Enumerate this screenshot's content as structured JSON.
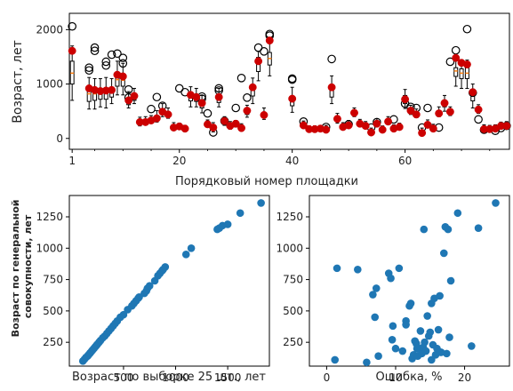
{
  "colors": {
    "box": "#000000",
    "median": "#ff7f0e",
    "flier": "#000000",
    "mean_point": "#cc0000",
    "scatter": "#1f77b4"
  },
  "chart_data": [
    {
      "type": "box",
      "title": "",
      "xlabel": "Порядковый номер площадки",
      "ylabel": "Возраст, лет",
      "xlim": [
        0.5,
        78.5
      ],
      "ylim": [
        -200,
        2300
      ],
      "xticks": [
        1,
        20,
        40,
        60
      ],
      "yticks": [
        0,
        1000,
        2000
      ],
      "grid": false,
      "x": [
        1,
        2,
        3,
        4,
        5,
        6,
        7,
        8,
        9,
        10,
        11,
        12,
        13,
        14,
        15,
        16,
        17,
        18,
        19,
        20,
        21,
        22,
        23,
        24,
        25,
        26,
        27,
        28,
        29,
        30,
        31,
        32,
        33,
        34,
        35,
        36,
        37,
        38,
        39,
        40,
        41,
        42,
        43,
        44,
        45,
        46,
        47,
        48,
        49,
        50,
        51,
        52,
        53,
        54,
        55,
        56,
        57,
        58,
        59,
        60,
        61,
        62,
        63,
        64,
        65,
        66,
        67,
        68,
        69,
        70,
        71,
        72,
        73,
        74,
        75,
        76,
        77,
        78
      ],
      "means": [
        1610,
        null,
        null,
        920,
        890,
        870,
        880,
        890,
        1170,
        1140,
        700,
        780,
        300,
        300,
        330,
        370,
        490,
        440,
        200,
        220,
        180,
        800,
        760,
        650,
        260,
        200,
        760,
        320,
        230,
        270,
        190,
        510,
        940,
        1420,
        430,
        1800,
        null,
        null,
        null,
        730,
        null,
        240,
        170,
        170,
        180,
        160,
        940,
        360,
        210,
        240,
        470,
        270,
        230,
        110,
        270,
        160,
        310,
        180,
        210,
        720,
        510,
        440,
        100,
        250,
        180,
        460,
        650,
        490,
        1480,
        1390,
        1360,
        850,
        530,
        170,
        170,
        180,
        230,
        230
      ],
      "box_low": [
        1000,
        null,
        null,
        680,
        700,
        720,
        720,
        760,
        960,
        960,
        620,
        700,
        260,
        300,
        330,
        350,
        440,
        410,
        200,
        190,
        170,
        690,
        680,
        560,
        240,
        160,
        660,
        280,
        200,
        240,
        160,
        440,
        780,
        1230,
        400,
        1350,
        null,
        null,
        null,
        600,
        null,
        220,
        160,
        160,
        160,
        160,
        760,
        320,
        190,
        240,
        440,
        260,
        220,
        110,
        260,
        140,
        300,
        170,
        200,
        640,
        480,
        410,
        100,
        230,
        170,
        440,
        580,
        460,
        1140,
        1100,
        1100,
        690,
        500,
        160,
        160,
        160,
        200,
        200
      ],
      "box_high": [
        1420,
        null,
        null,
        900,
        900,
        920,
        920,
        940,
        1160,
        1140,
        720,
        800,
        330,
        330,
        360,
        410,
        540,
        470,
        230,
        230,
        200,
        840,
        800,
        680,
        290,
        230,
        800,
        340,
        260,
        280,
        220,
        520,
        960,
        1490,
        470,
        1580,
        null,
        null,
        null,
        780,
        null,
        270,
        190,
        190,
        200,
        200,
        960,
        400,
        240,
        280,
        500,
        300,
        260,
        140,
        300,
        180,
        340,
        210,
        240,
        790,
        540,
        470,
        130,
        280,
        210,
        510,
        680,
        520,
        1300,
        1280,
        1300,
        880,
        560,
        200,
        190,
        200,
        250,
        260
      ],
      "median": [
        1200,
        null,
        null,
        820,
        820,
        840,
        840,
        860,
        1080,
        1070,
        680,
        760,
        300,
        320,
        350,
        380,
        500,
        440,
        210,
        210,
        185,
        780,
        760,
        640,
        265,
        195,
        750,
        315,
        235,
        260,
        190,
        490,
        910,
        1380,
        440,
        1470,
        null,
        null,
        null,
        720,
        null,
        240,
        175,
        175,
        180,
        180,
        900,
        360,
        215,
        260,
        470,
        280,
        240,
        125,
        280,
        160,
        320,
        190,
        220,
        730,
        510,
        440,
        115,
        255,
        190,
        475,
        640,
        490,
        1240,
        1200,
        1200,
        820,
        530,
        175,
        175,
        180,
        225,
        225
      ],
      "whisker_low": [
        700,
        null,
        null,
        540,
        540,
        580,
        560,
        640,
        800,
        800,
        560,
        640,
        230,
        260,
        290,
        300,
        400,
        370,
        180,
        170,
        150,
        580,
        580,
        470,
        210,
        120,
        580,
        240,
        170,
        210,
        140,
        390,
        640,
        1060,
        350,
        1150,
        null,
        null,
        null,
        480,
        null,
        190,
        140,
        140,
        140,
        140,
        640,
        280,
        170,
        210,
        400,
        230,
        200,
        90,
        230,
        110,
        260,
        150,
        180,
        550,
        440,
        380,
        80,
        200,
        150,
        400,
        500,
        420,
        960,
        920,
        920,
        560,
        460,
        130,
        130,
        140,
        170,
        170
      ],
      "whisker_high": [
        1700,
        null,
        null,
        1120,
        1100,
        1100,
        1120,
        1100,
        1420,
        1380,
        860,
        920,
        390,
        400,
        420,
        510,
        640,
        560,
        290,
        280,
        240,
        950,
        920,
        790,
        340,
        290,
        920,
        400,
        310,
        330,
        270,
        610,
        1110,
        1600,
        560,
        1780,
        null,
        null,
        null,
        940,
        null,
        320,
        230,
        230,
        240,
        240,
        1150,
        460,
        290,
        330,
        560,
        350,
        310,
        190,
        360,
        230,
        400,
        250,
        280,
        900,
        610,
        540,
        190,
        340,
        260,
        580,
        790,
        580,
        1450,
        1440,
        1440,
        1000,
        620,
        250,
        240,
        250,
        300,
        310
      ],
      "fliers": [
        [
          1,
          2060
        ],
        [
          4,
          1300
        ],
        [
          4,
          1250
        ],
        [
          5,
          1670
        ],
        [
          5,
          1610
        ],
        [
          7,
          1410
        ],
        [
          7,
          1340
        ],
        [
          8,
          1540
        ],
        [
          9,
          1560
        ],
        [
          10,
          1380
        ],
        [
          10,
          1480
        ],
        [
          11,
          750
        ],
        [
          11,
          900
        ],
        [
          15,
          540
        ],
        [
          16,
          760
        ],
        [
          17,
          600
        ],
        [
          20,
          920
        ],
        [
          21,
          850
        ],
        [
          24,
          770
        ],
        [
          24,
          730
        ],
        [
          25,
          460
        ],
        [
          26,
          110
        ],
        [
          27,
          920
        ],
        [
          27,
          880
        ],
        [
          28,
          320
        ],
        [
          30,
          560
        ],
        [
          31,
          1110
        ],
        [
          32,
          750
        ],
        [
          34,
          1670
        ],
        [
          35,
          1600
        ],
        [
          36,
          1920
        ],
        [
          36,
          1890
        ],
        [
          40,
          1080
        ],
        [
          40,
          1100
        ],
        [
          42,
          310
        ],
        [
          46,
          210
        ],
        [
          47,
          1460
        ],
        [
          50,
          260
        ],
        [
          54,
          200
        ],
        [
          55,
          300
        ],
        [
          58,
          350
        ],
        [
          60,
          640
        ],
        [
          61,
          580
        ],
        [
          62,
          560
        ],
        [
          63,
          200
        ],
        [
          64,
          560
        ],
        [
          66,
          200
        ],
        [
          68,
          1410
        ],
        [
          69,
          1620
        ],
        [
          71,
          2010
        ],
        [
          72,
          840
        ],
        [
          73,
          350
        ],
        [
          74,
          160
        ],
        [
          76,
          140
        ],
        [
          77,
          190
        ],
        [
          78,
          230
        ]
      ],
      "note_missing": "nulls are positions with no rendered box"
    },
    {
      "type": "scatter",
      "title": "",
      "xlabel": "Возраст по выборке 25 шт., лет",
      "ylabel": "Возраст по генеральной совокупности, лет",
      "xlim": [
        -20,
        1900
      ],
      "ylim": [
        60,
        1420
      ],
      "xticks": [
        500,
        1000,
        1500
      ],
      "yticks": [
        250,
        500,
        750,
        1000,
        1250
      ],
      "x": [
        110,
        125,
        140,
        155,
        165,
        175,
        180,
        190,
        200,
        210,
        220,
        230,
        240,
        250,
        265,
        280,
        300,
        320,
        340,
        360,
        380,
        400,
        420,
        440,
        470,
        500,
        540,
        580,
        600,
        620,
        640,
        650,
        700,
        720,
        730,
        750,
        800,
        830,
        850,
        870,
        880,
        900,
        1100,
        1150,
        1400,
        1420,
        1450,
        1500,
        1620,
        1820
      ],
      "y": [
        100,
        115,
        130,
        140,
        150,
        160,
        165,
        175,
        185,
        195,
        205,
        215,
        225,
        235,
        250,
        265,
        285,
        300,
        320,
        340,
        360,
        380,
        400,
        420,
        450,
        470,
        510,
        540,
        560,
        580,
        600,
        610,
        640,
        660,
        680,
        700,
        740,
        780,
        800,
        820,
        830,
        850,
        950,
        1000,
        1150,
        1160,
        1180,
        1190,
        1280,
        1360
      ]
    },
    {
      "type": "scatter",
      "title": "",
      "xlabel": "Ошибка, %",
      "ylabel": "",
      "xlim": [
        -2.5,
        26.5
      ],
      "ylim": [
        60,
        1420
      ],
      "xticks": [
        0,
        10,
        20
      ],
      "yticks": [
        250,
        500,
        750,
        1000,
        1250
      ],
      "x": [
        1.2,
        1.5,
        4.5,
        5.8,
        6.7,
        7.2,
        7.5,
        9.0,
        9.3,
        9.6,
        10.0,
        10.5,
        11.0,
        11.5,
        12.0,
        12.2,
        12.4,
        12.6,
        13.0,
        13.2,
        13.4,
        13.6,
        13.8,
        14.0,
        14.2,
        14.4,
        14.6,
        14.8,
        15.0,
        15.2,
        15.4,
        15.6,
        15.8,
        16.0,
        16.2,
        16.4,
        16.6,
        17.0,
        17.2,
        17.4,
        17.6,
        17.8,
        18.0,
        19.0,
        21.0,
        22.0,
        24.5,
        7.0,
        11.5,
        15.2,
        16.5,
        9.5,
        12.8,
        14.1,
        13.1
      ],
      "y": [
        110,
        840,
        830,
        90,
        630,
        680,
        140,
        800,
        760,
        380,
        200,
        840,
        180,
        420,
        540,
        560,
        120,
        150,
        240,
        140,
        200,
        340,
        160,
        210,
        250,
        180,
        460,
        300,
        330,
        560,
        230,
        600,
        150,
        200,
        350,
        620,
        170,
        960,
        1170,
        160,
        1150,
        290,
        740,
        1280,
        220,
        1160,
        1360,
        450,
        390,
        110,
        170,
        270,
        260,
        1150,
        200
      ]
    }
  ]
}
